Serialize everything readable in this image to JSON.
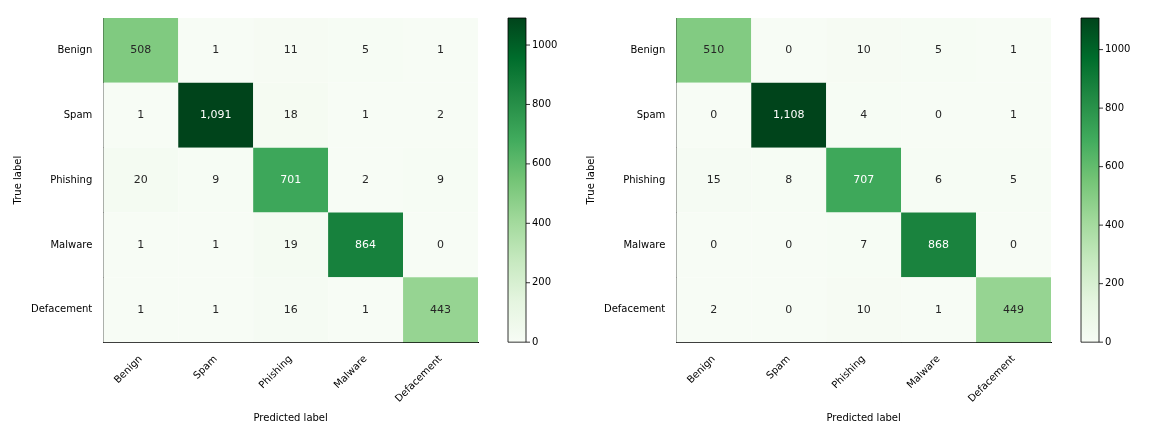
{
  "chart_data": [
    {
      "type": "heatmap",
      "xlabel": "Predicted label",
      "ylabel": "True label",
      "categories": [
        "Benign",
        "Spam",
        "Phishing",
        "Malware",
        "Defacement"
      ],
      "y_categories": [
        "Benign",
        "Spam",
        "Phishing",
        "Malware",
        "Defacement"
      ],
      "cells": [
        [
          508,
          1,
          11,
          5,
          1
        ],
        [
          1,
          1091,
          18,
          1,
          2
        ],
        [
          20,
          9,
          701,
          2,
          9
        ],
        [
          1,
          1,
          19,
          864,
          0
        ],
        [
          1,
          1,
          16,
          1,
          443
        ]
      ],
      "cell_labels": [
        [
          "508",
          "1",
          "11",
          "5",
          "1"
        ],
        [
          "1",
          "1,091",
          "18",
          "1",
          "2"
        ],
        [
          "20",
          "9",
          "701",
          "2",
          "9"
        ],
        [
          "1",
          "1",
          "19",
          "864",
          "0"
        ],
        [
          "1",
          "1",
          "16",
          "1",
          "443"
        ]
      ],
      "clim": [
        0,
        1091
      ],
      "cticks": [
        0,
        200,
        400,
        600,
        800,
        1000
      ]
    },
    {
      "type": "heatmap",
      "xlabel": "Predicted label",
      "ylabel": "True label",
      "categories": [
        "Benign",
        "Spam",
        "Phishing",
        "Malware",
        "Defacement"
      ],
      "y_categories": [
        "Benign",
        "Spam",
        "Phishing",
        "Malware",
        "Defacement"
      ],
      "cells": [
        [
          510,
          0,
          10,
          5,
          1
        ],
        [
          0,
          1108,
          4,
          0,
          1
        ],
        [
          15,
          8,
          707,
          6,
          5
        ],
        [
          0,
          0,
          7,
          868,
          0
        ],
        [
          2,
          0,
          10,
          1,
          449
        ]
      ],
      "cell_labels": [
        [
          "510",
          "0",
          "10",
          "5",
          "1"
        ],
        [
          "0",
          "1,108",
          "4",
          "0",
          "1"
        ],
        [
          "15",
          "8",
          "707",
          "6",
          "5"
        ],
        [
          "0",
          "0",
          "7",
          "868",
          "0"
        ],
        [
          "2",
          "0",
          "10",
          "1",
          "449"
        ]
      ],
      "clim": [
        0,
        1108
      ],
      "cticks": [
        0,
        200,
        400,
        600,
        800,
        1000
      ]
    }
  ]
}
